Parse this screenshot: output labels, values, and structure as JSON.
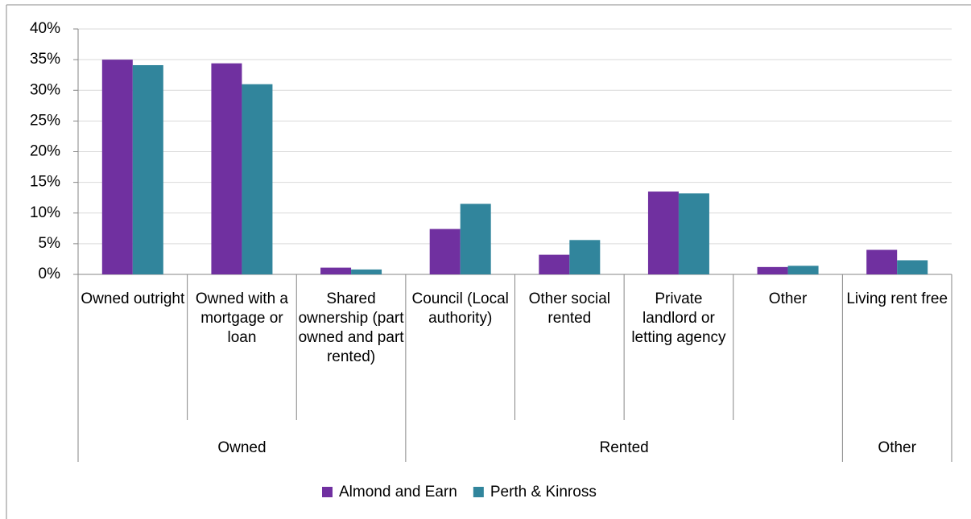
{
  "chart_data": {
    "type": "bar",
    "categories": [
      "Owned outright",
      "Owned with a mortgage or loan",
      "Shared ownership (part owned and part rented)",
      "Council (Local authority)",
      "Other social rented",
      "Private landlord or letting agency",
      "Other",
      "Living rent free"
    ],
    "category_groups": [
      "Owned",
      "Owned",
      "Owned",
      "Rented",
      "Rented",
      "Rented",
      "Rented",
      "Other"
    ],
    "series": [
      {
        "name": "Almond and Earn",
        "color": "#7030a0",
        "values": [
          35.0,
          34.4,
          1.1,
          7.4,
          3.2,
          13.5,
          1.2,
          4.0
        ]
      },
      {
        "name": "Perth & Kinross",
        "color": "#31859c",
        "values": [
          34.1,
          31.0,
          0.8,
          11.5,
          5.6,
          13.2,
          1.4,
          2.3
        ]
      }
    ],
    "ylim": [
      0,
      40
    ],
    "yticks": [
      {
        "value": 0,
        "label": "0%"
      },
      {
        "value": 5,
        "label": "5%"
      },
      {
        "value": 10,
        "label": "10%"
      },
      {
        "value": 15,
        "label": "15%"
      },
      {
        "value": 20,
        "label": "20%"
      },
      {
        "value": 25,
        "label": "25%"
      },
      {
        "value": 30,
        "label": "30%"
      },
      {
        "value": 35,
        "label": "35%"
      },
      {
        "value": 40,
        "label": "40%"
      }
    ],
    "grid": true,
    "legend": "bottom"
  }
}
